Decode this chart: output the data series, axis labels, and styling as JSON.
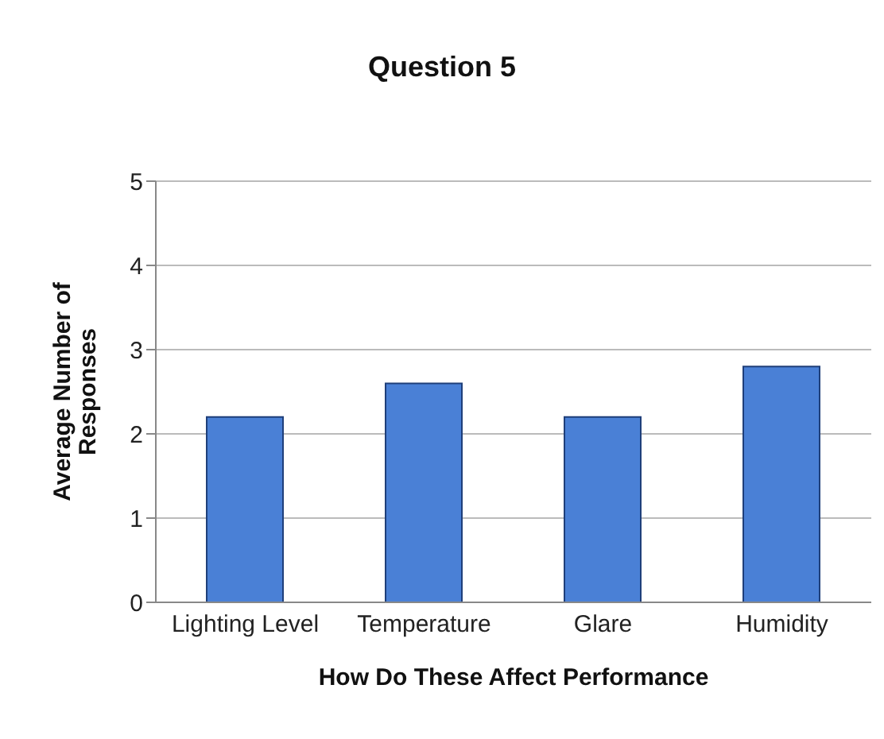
{
  "chart_data": {
    "type": "bar",
    "title": "Question 5",
    "xlabel": "How Do These Affect Performance",
    "ylabel": "Average Number of Responses",
    "categories": [
      "Lighting Level",
      "Temperature",
      "Glare",
      "Humidity"
    ],
    "values": [
      2.2,
      2.6,
      2.2,
      2.8
    ],
    "color": "#4a80d6",
    "ylim": [
      0,
      5
    ],
    "yticks": [
      0,
      1,
      2,
      3,
      4,
      5
    ],
    "grid": "y"
  }
}
